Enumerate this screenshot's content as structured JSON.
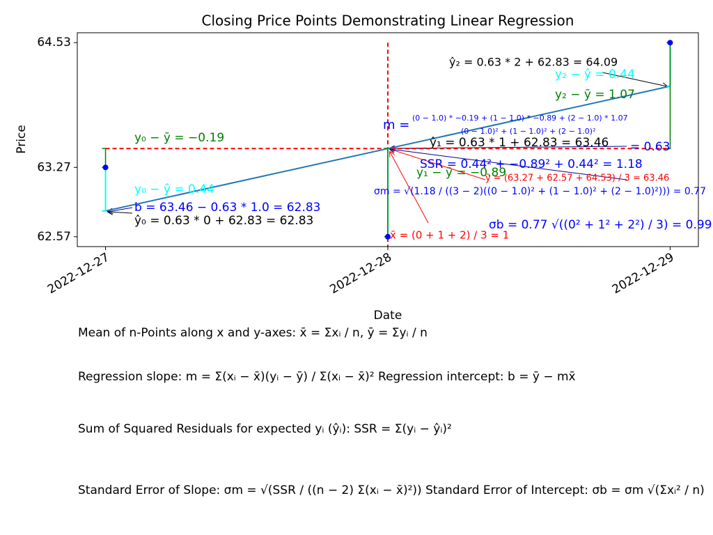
{
  "chart_data": {
    "type": "scatter",
    "title": "Closing Price Points Demonstrating Linear Regression",
    "xlabel": "Date",
    "ylabel": "Price",
    "categories": [
      "2022-12-27",
      "2022-12-28",
      "2022-12-29"
    ],
    "values": [
      63.27,
      62.57,
      64.53
    ],
    "fitted": [
      62.83,
      63.46,
      64.09
    ],
    "mean_x": 1,
    "mean_y": 63.46,
    "color": "#0000ff",
    "line_color": "#1f77b4",
    "residual_color": "#00ffff",
    "deviation_color": "#008000",
    "mean_color": "#ff0000",
    "xlim": [
      -0.1,
      2.1
    ],
    "ylim": [
      62.47,
      64.63
    ],
    "yticks": [
      62.57,
      63.27,
      64.53
    ],
    "annotations": [
      {
        "text": "ŷ₂ = 0.63 * 2 + 62.83 = 64.09",
        "color": "#000000"
      },
      {
        "text": "y₂ − ŷ = 0.44",
        "color": "#00ffff"
      },
      {
        "text": "y₂ − ȳ = 1.07",
        "color": "#008000"
      },
      {
        "text": "m =",
        "color": "#0000ff"
      },
      {
        "text": "(0 − 1.0) * −0.19 + (1 − 1.0) * −0.89 + (2 − 1.0) * 1.07",
        "color": "#0000ff"
      },
      {
        "text": "(0 − 1.0)² + (1 − 1.0)² + (2 − 1.0)²",
        "color": "#0000ff"
      },
      {
        "text": "= 0.63",
        "color": "#0000ff"
      },
      {
        "text": "ŷ₁ = 0.63 * 1 + 62.83 = 63.46",
        "color": "#000000"
      },
      {
        "text": "y₀ − ȳ = −0.19",
        "color": "#008000"
      },
      {
        "text": "y₀ − ŷ = 0.44",
        "color": "#00ffff"
      },
      {
        "text": "b = 63.46 − 0.63 * 1.0 = 62.83",
        "color": "#0000ff"
      },
      {
        "text": "ŷ₀ = 0.63 * 0 + 62.83 = 62.83",
        "color": "#000000"
      },
      {
        "text": "SSR = 0.44² + −0.89² + 0.44² = 1.18",
        "color": "#0000ff"
      },
      {
        "text": "y₁ − ȳ = −0.89",
        "color": "#008000"
      },
      {
        "text": "ȳ = (63.27 + 62.57 + 64.53) / 3 = 63.46",
        "color": "#ff0000"
      },
      {
        "text": "σm = √(1.18 / ((3 − 2)((0 − 1.0)² + (1 − 1.0)² + (2 − 1.0)²))) = 0.77",
        "color": "#0000ff"
      },
      {
        "text": "x̄ = (0 + 1 + 2) / 3 = 1",
        "color": "#ff0000"
      },
      {
        "text": "σb = 0.77 √((0² + 1² + 2²) / 3) = 0.99",
        "color": "#0000ff"
      }
    ],
    "formulas": [
      "Mean of n-Points along x and y-axes: x̄ = Σxᵢ / n, ȳ = Σyᵢ / n",
      "Regression slope: m = Σ(xᵢ − x̄)(yᵢ − ȳ) / Σ(xᵢ − x̄)²   Regression intercept: b = ȳ − mx̄",
      "Sum of Squared Residuals for expected yᵢ (ŷᵢ): SSR = Σ(yᵢ − ŷᵢ)²",
      "Standard Error of Slope: σm = √(SSR / ((n − 2) Σ(xᵢ − x̄)²))   Standard Error of Intercept: σb = σm √(Σxᵢ² / n)"
    ]
  }
}
